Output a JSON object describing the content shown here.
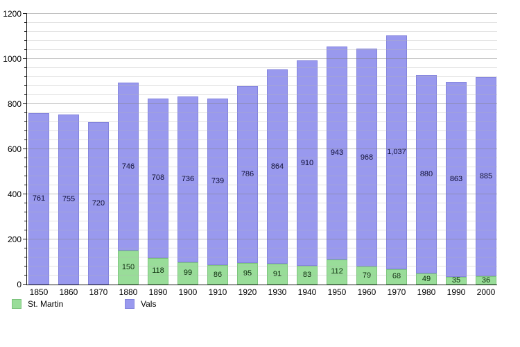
{
  "chart_data": {
    "type": "bar",
    "stacked": true,
    "title": "",
    "xlabel": "",
    "ylabel": "",
    "categories": [
      "1850",
      "1860",
      "1870",
      "1880",
      "1890",
      "1900",
      "1910",
      "1920",
      "1930",
      "1940",
      "1950",
      "1960",
      "1970",
      "1980",
      "1990",
      "2000"
    ],
    "series": [
      {
        "name": "St. Martin",
        "color": "#99dd99",
        "border_color": "#7cc47c",
        "label_color": "#0a2a0a",
        "values": [
          null,
          null,
          null,
          150,
          118,
          99,
          86,
          95,
          91,
          83,
          112,
          79,
          68,
          49,
          35,
          36
        ],
        "labels": [
          "",
          "",
          "",
          "150",
          "118",
          "99",
          "86",
          "95",
          "91",
          "83",
          "112",
          "79",
          "68",
          "49",
          "35",
          "36"
        ]
      },
      {
        "name": "Vals",
        "color": "#9999ee",
        "border_color": "#8484dd",
        "label_color": "#0b0b33",
        "values": [
          761,
          755,
          720,
          746,
          708,
          736,
          739,
          786,
          864,
          910,
          943,
          968,
          1037,
          880,
          863,
          885
        ],
        "labels": [
          "761",
          "755",
          "720",
          "746",
          "708",
          "736",
          "739",
          "786",
          "864",
          "910",
          "943",
          "968",
          "1,037",
          "880",
          "863",
          "885"
        ]
      }
    ],
    "ylim": [
      0,
      1200
    ],
    "ytick_step": 200,
    "minor_step": 40,
    "yticks": [
      "0",
      "200",
      "400",
      "600",
      "800",
      "1000",
      "1200"
    ],
    "grid": true,
    "legend_position": "bottom-left"
  }
}
